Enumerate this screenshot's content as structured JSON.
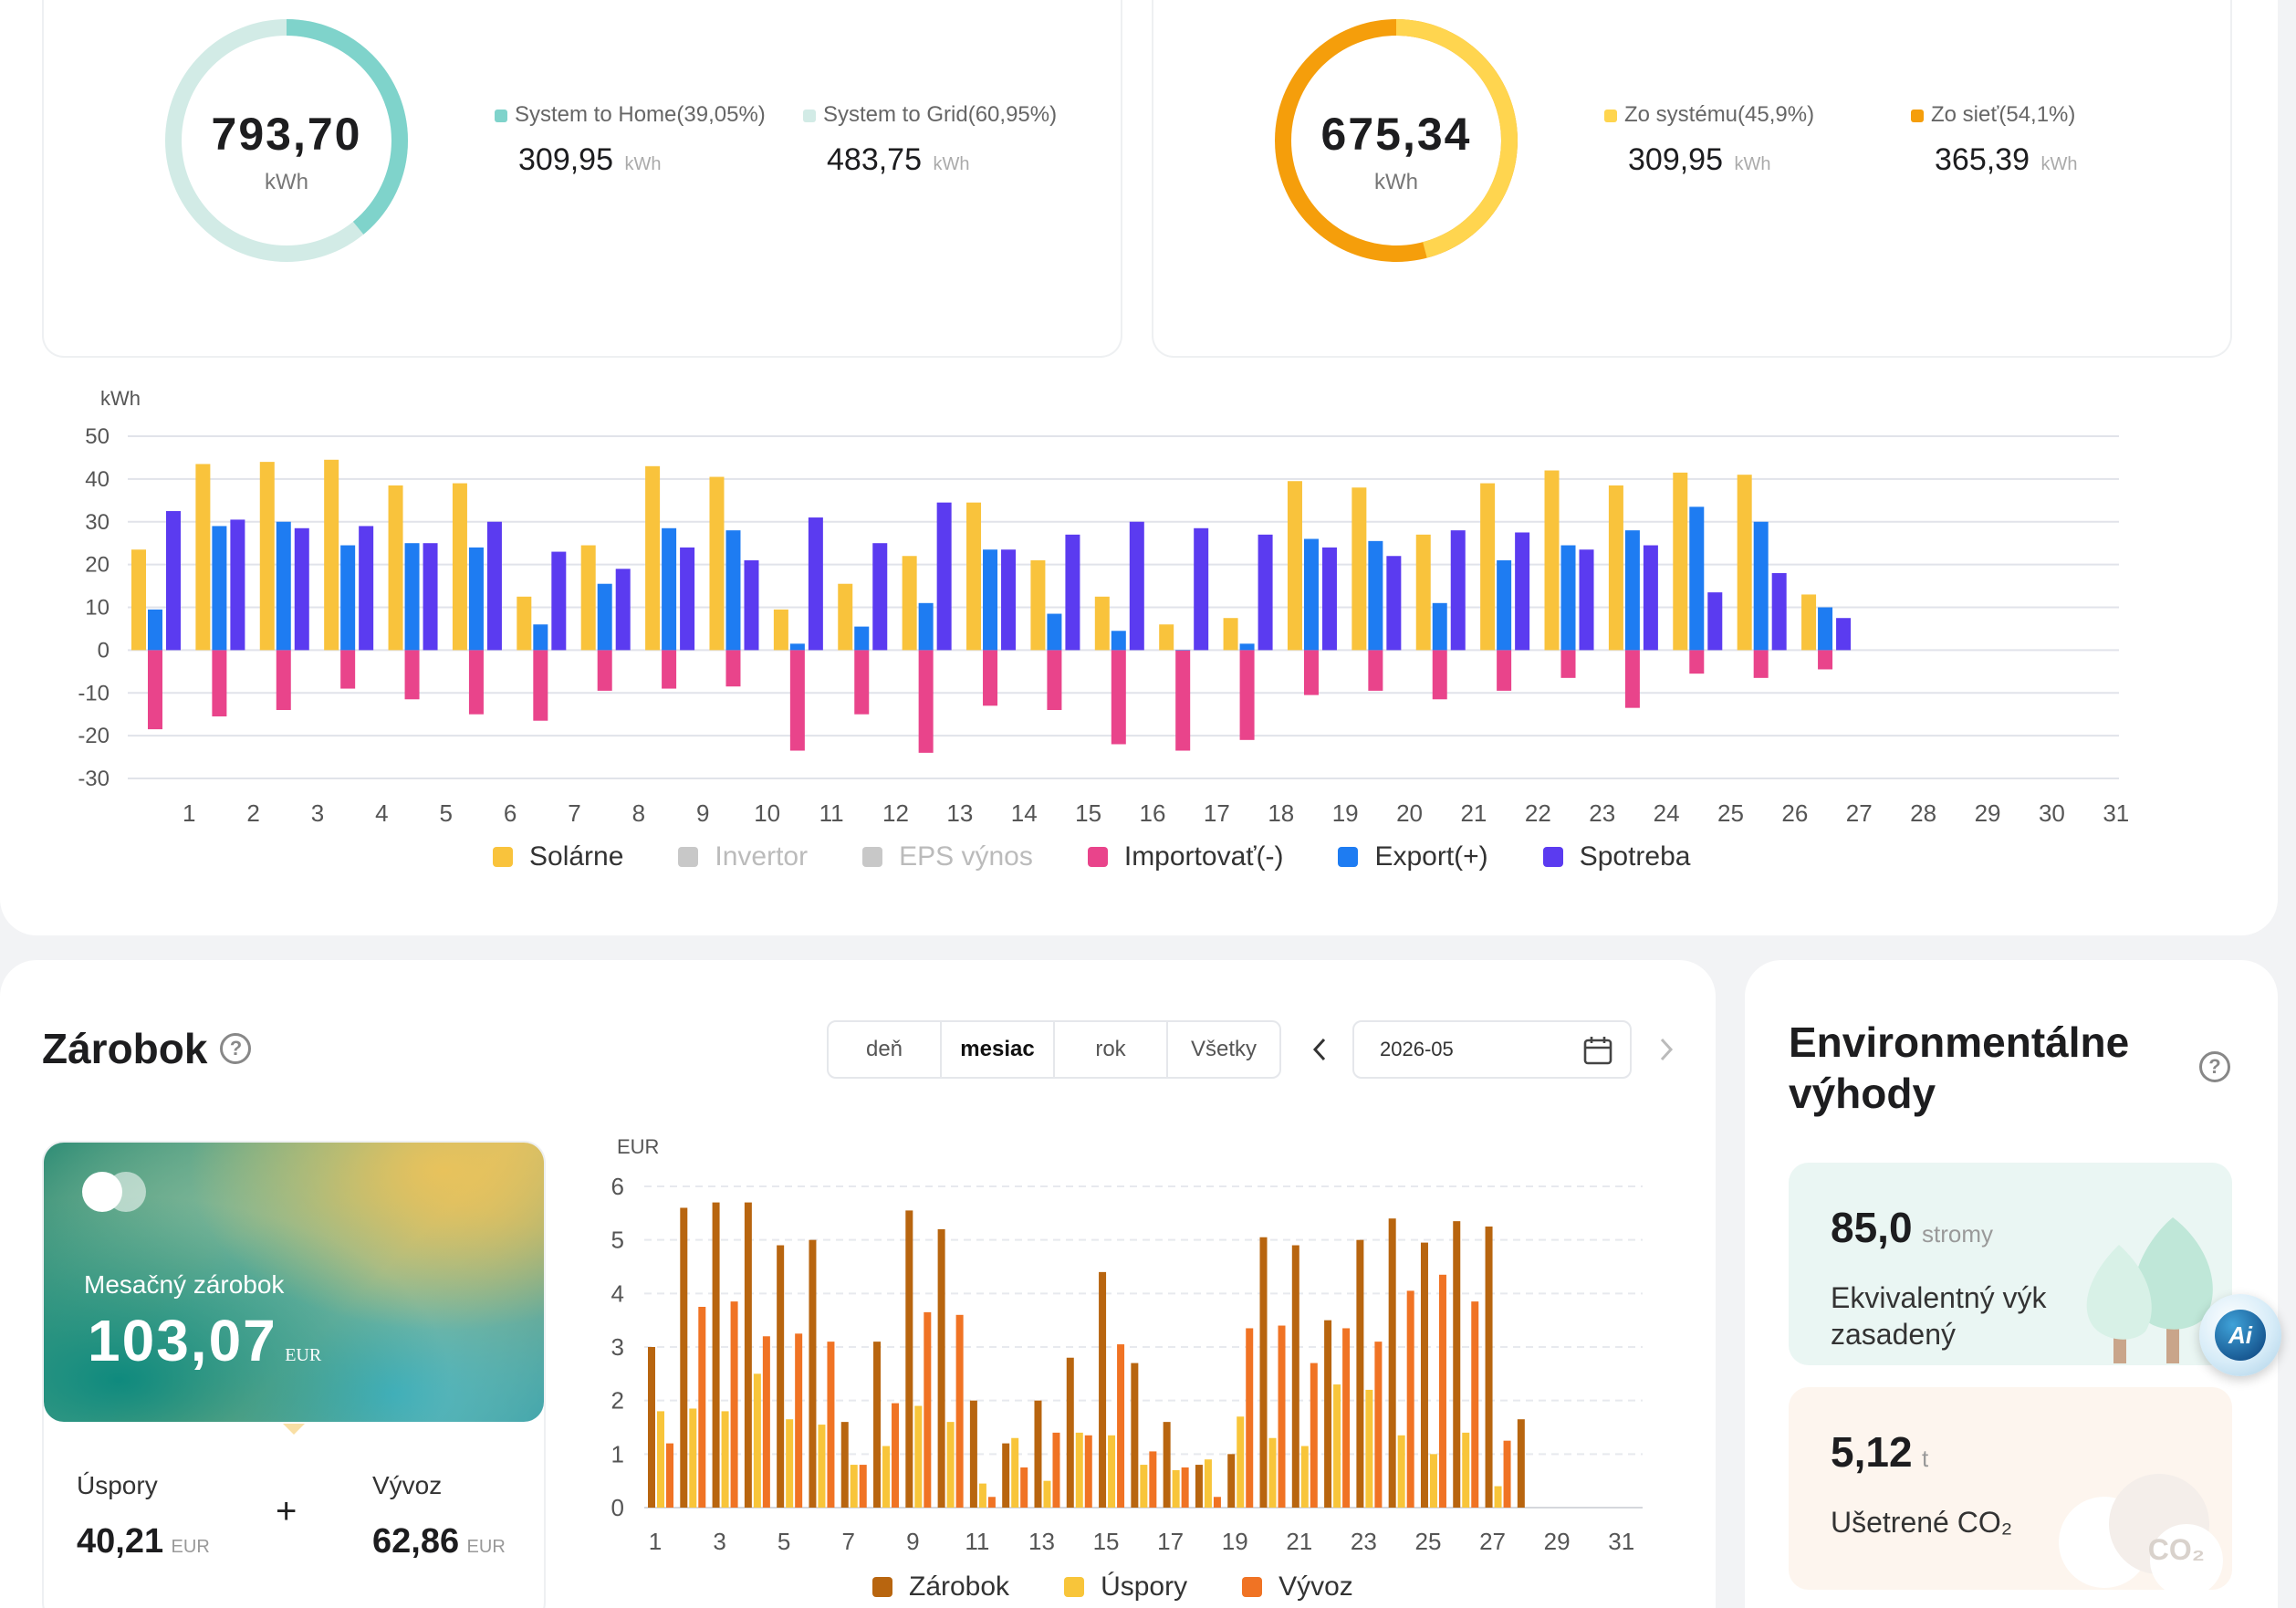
{
  "summary_left": {
    "total": "793,70",
    "unit": "kWh",
    "items": [
      {
        "label": "System to Home(39,05%)",
        "value": "309,95",
        "unit": "kWh",
        "color": "#7fd3cb"
      },
      {
        "label": "System to Grid(60,95%)",
        "value": "483,75",
        "unit": "kWh",
        "color": "#d2ebe6"
      }
    ],
    "ring_fraction": 0.3905
  },
  "summary_right": {
    "total": "675,34",
    "unit": "kWh",
    "items": [
      {
        "label": "Zo systému(45,9%)",
        "value": "309,95",
        "unit": "kWh",
        "color": "#ffd54f"
      },
      {
        "label": "Zo sieť(54,1%)",
        "value": "365,39",
        "unit": "kWh",
        "color": "#f59e0b"
      }
    ],
    "ring_fraction": 0.459
  },
  "energy_chart": {
    "ylabel": "kWh",
    "legend": [
      {
        "name": "Solárne",
        "color": "#f9c33c",
        "active": true
      },
      {
        "name": "Invertor",
        "color": "#c8c8c8",
        "active": false
      },
      {
        "name": "EPS výnos",
        "color": "#c8c8c8",
        "active": false
      },
      {
        "name": "Importovať(-)",
        "color": "#e9448b",
        "active": true
      },
      {
        "name": "Export(+)",
        "color": "#1e7cf2",
        "active": true
      },
      {
        "name": "Spotreba",
        "color": "#5b3bf0",
        "active": true
      }
    ]
  },
  "earnings": {
    "title": "Zárobok",
    "tabs": [
      "deň",
      "mesiac",
      "rok",
      "Všetky"
    ],
    "active_tab": "mesiac",
    "date": "2026-05",
    "card": {
      "label": "Mesačný zárobok",
      "value": "103,07",
      "unit": "EUR"
    },
    "savings": {
      "label": "Úspory",
      "value": "40,21",
      "unit": "EUR"
    },
    "plus": "+",
    "export": {
      "label": "Vývoz",
      "value": "62,86",
      "unit": "EUR"
    },
    "chart_ylabel": "EUR",
    "legend": [
      {
        "name": "Zárobok",
        "color": "#b8650f"
      },
      {
        "name": "Úspory",
        "color": "#f8c53a"
      },
      {
        "name": "Vývoz",
        "color": "#f07324"
      }
    ]
  },
  "environment": {
    "title_line1": "Environmentálne",
    "title_line2": "výhody",
    "trees": {
      "value": "85,0",
      "unit": "stromy",
      "desc1": "Ekvivalentný výk",
      "desc2": "zasadený"
    },
    "co2": {
      "value": "5,12",
      "unit": "t",
      "desc": "Ušetrené CO₂",
      "cloud_label": "CO₂"
    },
    "ai_badge": "Ai"
  },
  "chart_data": [
    {
      "type": "bar",
      "ylabel": "kWh",
      "ylim": [
        -30,
        50
      ],
      "yticks": [
        50,
        40,
        30,
        20,
        10,
        0,
        -10,
        -20,
        -30
      ],
      "categories": [
        "1",
        "2",
        "3",
        "4",
        "5",
        "6",
        "7",
        "8",
        "9",
        "10",
        "11",
        "12",
        "13",
        "14",
        "15",
        "16",
        "17",
        "18",
        "19",
        "20",
        "21",
        "22",
        "23",
        "24",
        "25",
        "26",
        "27",
        "28",
        "29",
        "30",
        "31"
      ],
      "series": [
        {
          "name": "Solárne",
          "color": "#f9c33c",
          "values": [
            23.5,
            43.5,
            44,
            44.5,
            38.5,
            39,
            12.5,
            24.5,
            43,
            40.5,
            9.5,
            15.5,
            22,
            34.5,
            21,
            12.5,
            6,
            7.5,
            39.5,
            38,
            27,
            39,
            42,
            38.5,
            41.5,
            41,
            13,
            null,
            null,
            null,
            null
          ]
        },
        {
          "name": "Importovať(-)",
          "color": "#e9448b",
          "values": [
            -18.5,
            -15.5,
            -14,
            -9,
            -11.5,
            -15,
            -16.5,
            -9.5,
            -9,
            -8.5,
            -23.5,
            -15,
            -24,
            -13,
            -14,
            -22,
            -23.5,
            -21,
            -10.5,
            -9.5,
            -11.5,
            -9.5,
            -6.5,
            -13.5,
            -5.5,
            -6.5,
            -4.5,
            null,
            null,
            null,
            null
          ]
        },
        {
          "name": "Export(+)",
          "color": "#1e7cf2",
          "values": [
            9.5,
            29,
            30,
            24.5,
            25,
            24,
            6,
            15.5,
            28.5,
            28,
            1.5,
            5.5,
            11,
            23.5,
            8.5,
            4.5,
            0,
            1.5,
            26,
            25.5,
            11,
            21,
            24.5,
            28,
            33.5,
            30,
            10,
            null,
            null,
            null,
            null
          ]
        },
        {
          "name": "Spotreba",
          "color": "#5b3bf0",
          "values": [
            32.5,
            30.5,
            28.5,
            29,
            25,
            30,
            23,
            19,
            24,
            21,
            31,
            25,
            34.5,
            23.5,
            27,
            30,
            28.5,
            27,
            24,
            22,
            28,
            27.5,
            23.5,
            24.5,
            13.5,
            18,
            7.5,
            null,
            null,
            null,
            null
          ]
        }
      ],
      "legend": [
        "Solárne",
        "Invertor",
        "EPS výnos",
        "Importovať(-)",
        "Export(+)",
        "Spotreba"
      ],
      "legend_placement": "bottom",
      "grid": true
    },
    {
      "type": "bar",
      "ylabel": "EUR",
      "ylim": [
        0,
        6
      ],
      "yticks": [
        0,
        1,
        2,
        3,
        4,
        5,
        6
      ],
      "categories": [
        "1",
        "2",
        "3",
        "4",
        "5",
        "6",
        "7",
        "8",
        "9",
        "10",
        "11",
        "12",
        "13",
        "14",
        "15",
        "16",
        "17",
        "18",
        "19",
        "20",
        "21",
        "22",
        "23",
        "24",
        "25",
        "26",
        "27",
        "28",
        "29",
        "30",
        "31"
      ],
      "xticks_shown": [
        "1",
        "3",
        "5",
        "7",
        "9",
        "11",
        "13",
        "15",
        "17",
        "19",
        "21",
        "23",
        "25",
        "27",
        "29",
        "31"
      ],
      "series": [
        {
          "name": "Zárobok",
          "color": "#b8650f",
          "values": [
            3.0,
            5.6,
            5.7,
            5.7,
            4.9,
            5.0,
            1.6,
            3.1,
            5.55,
            5.2,
            2.0,
            1.2,
            2.0,
            2.8,
            4.4,
            2.7,
            1.6,
            0.8,
            1.0,
            5.05,
            4.9,
            3.5,
            5.0,
            5.4,
            4.95,
            5.35,
            5.25,
            1.65,
            null,
            null,
            null
          ]
        },
        {
          "name": "Úspory",
          "color": "#f8c53a",
          "values": [
            1.8,
            1.85,
            1.8,
            2.5,
            1.65,
            1.55,
            0.8,
            1.15,
            1.9,
            1.6,
            0.45,
            1.3,
            0.5,
            1.4,
            1.35,
            0.8,
            0.7,
            0.9,
            1.7,
            1.3,
            1.15,
            2.3,
            2.2,
            1.35,
            1.0,
            1.4,
            0.4,
            null,
            null,
            null,
            null
          ]
        },
        {
          "name": "Vývoz",
          "color": "#f07324",
          "values": [
            1.2,
            3.75,
            3.85,
            3.2,
            3.25,
            3.1,
            0.8,
            1.95,
            3.65,
            3.6,
            0.2,
            0.75,
            1.4,
            1.35,
            3.05,
            1.05,
            0.75,
            0.2,
            3.35,
            3.4,
            2.7,
            3.35,
            3.1,
            4.05,
            4.35,
            3.85,
            1.25,
            null,
            null,
            null,
            null
          ]
        }
      ],
      "legend": [
        "Zárobok",
        "Úspory",
        "Vývoz"
      ],
      "legend_placement": "bottom",
      "grid": true
    }
  ]
}
